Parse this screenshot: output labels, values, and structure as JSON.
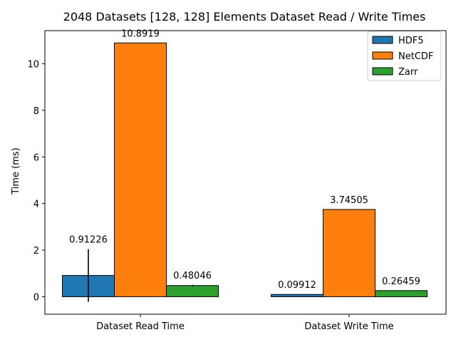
{
  "chart_data": {
    "type": "bar",
    "title": "2048 Datasets [128, 128] Elements Dataset Read / Write Times",
    "xlabel": "",
    "ylabel": "Time (ms)",
    "ylim": [
      -0.75,
      11.42
    ],
    "yticks": [
      0,
      2,
      4,
      6,
      8,
      10
    ],
    "categories": [
      "Dataset Read Time",
      "Dataset Write Time"
    ],
    "legend_position": "top-right",
    "grid": false,
    "series": [
      {
        "name": "HDF5",
        "color": "#1f77b4",
        "values": [
          0.91226,
          0.09912
        ],
        "value_labels": [
          "0.91226",
          "0.09912"
        ],
        "error": [
          1.13,
          0.0
        ]
      },
      {
        "name": "NetCDF",
        "color": "#ff7f0e",
        "values": [
          10.8919,
          3.74505
        ],
        "value_labels": [
          "10.8919",
          "3.74505"
        ],
        "error": [
          0.0,
          0.0
        ]
      },
      {
        "name": "Zarr",
        "color": "#2ca02c",
        "values": [
          0.48046,
          0.26459
        ],
        "value_labels": [
          "0.48046",
          "0.26459"
        ],
        "error": [
          0.03,
          0.0
        ]
      }
    ]
  }
}
